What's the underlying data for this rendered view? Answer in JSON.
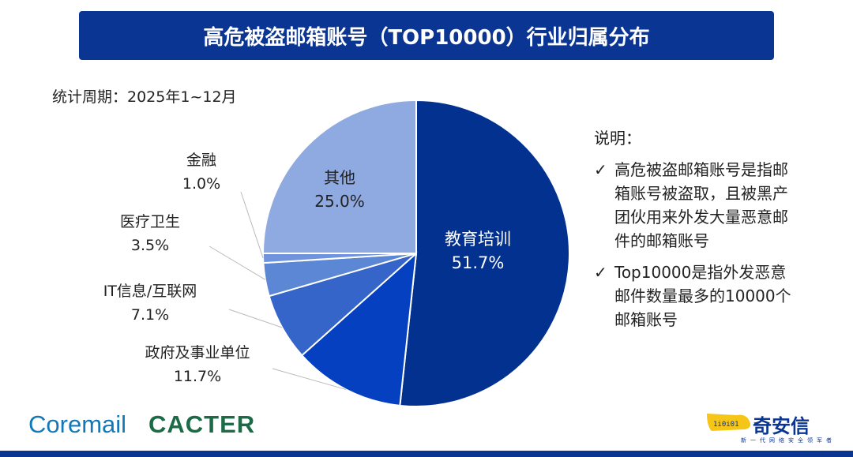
{
  "title": "高危被盗邮箱账号（TOP10000）行业归属分布",
  "period": "统计周期：2025年1~12月",
  "chart_data": {
    "type": "pie",
    "title": "高危被盗邮箱账号（TOP10000）行业归属分布",
    "start": "top",
    "direction": "clockwise",
    "slices": [
      {
        "name": "教育培训",
        "value": 51.7,
        "label": "51.7%",
        "color": "#03318f"
      },
      {
        "name": "政府及事业单位",
        "value": 11.7,
        "label": "11.7%",
        "color": "#0540c0"
      },
      {
        "name": "IT信息/互联网",
        "value": 7.1,
        "label": "7.1%",
        "color": "#3565c8"
      },
      {
        "name": "医疗卫生",
        "value": 3.5,
        "label": "3.5%",
        "color": "#5b87d4"
      },
      {
        "name": "金融",
        "value": 1.0,
        "label": "1.0%",
        "color": "#6f93dc"
      },
      {
        "name": "其他",
        "value": 25.0,
        "label": "25.0%",
        "color": "#8eaae0"
      }
    ]
  },
  "notes": {
    "heading": "说明：",
    "items": [
      "高危被盗邮箱账号是指邮箱账号被盗取，且被黑产团伙用来外发大量恶意邮件的邮箱账号",
      "Top10000是指外发恶意邮件数量最多的10000个邮箱账号"
    ]
  },
  "logos": {
    "coremail": "Coremail",
    "cacter": "CACTER",
    "qianxin": "奇安信",
    "qianxin_slogan": "新一代网络安全领军者"
  }
}
